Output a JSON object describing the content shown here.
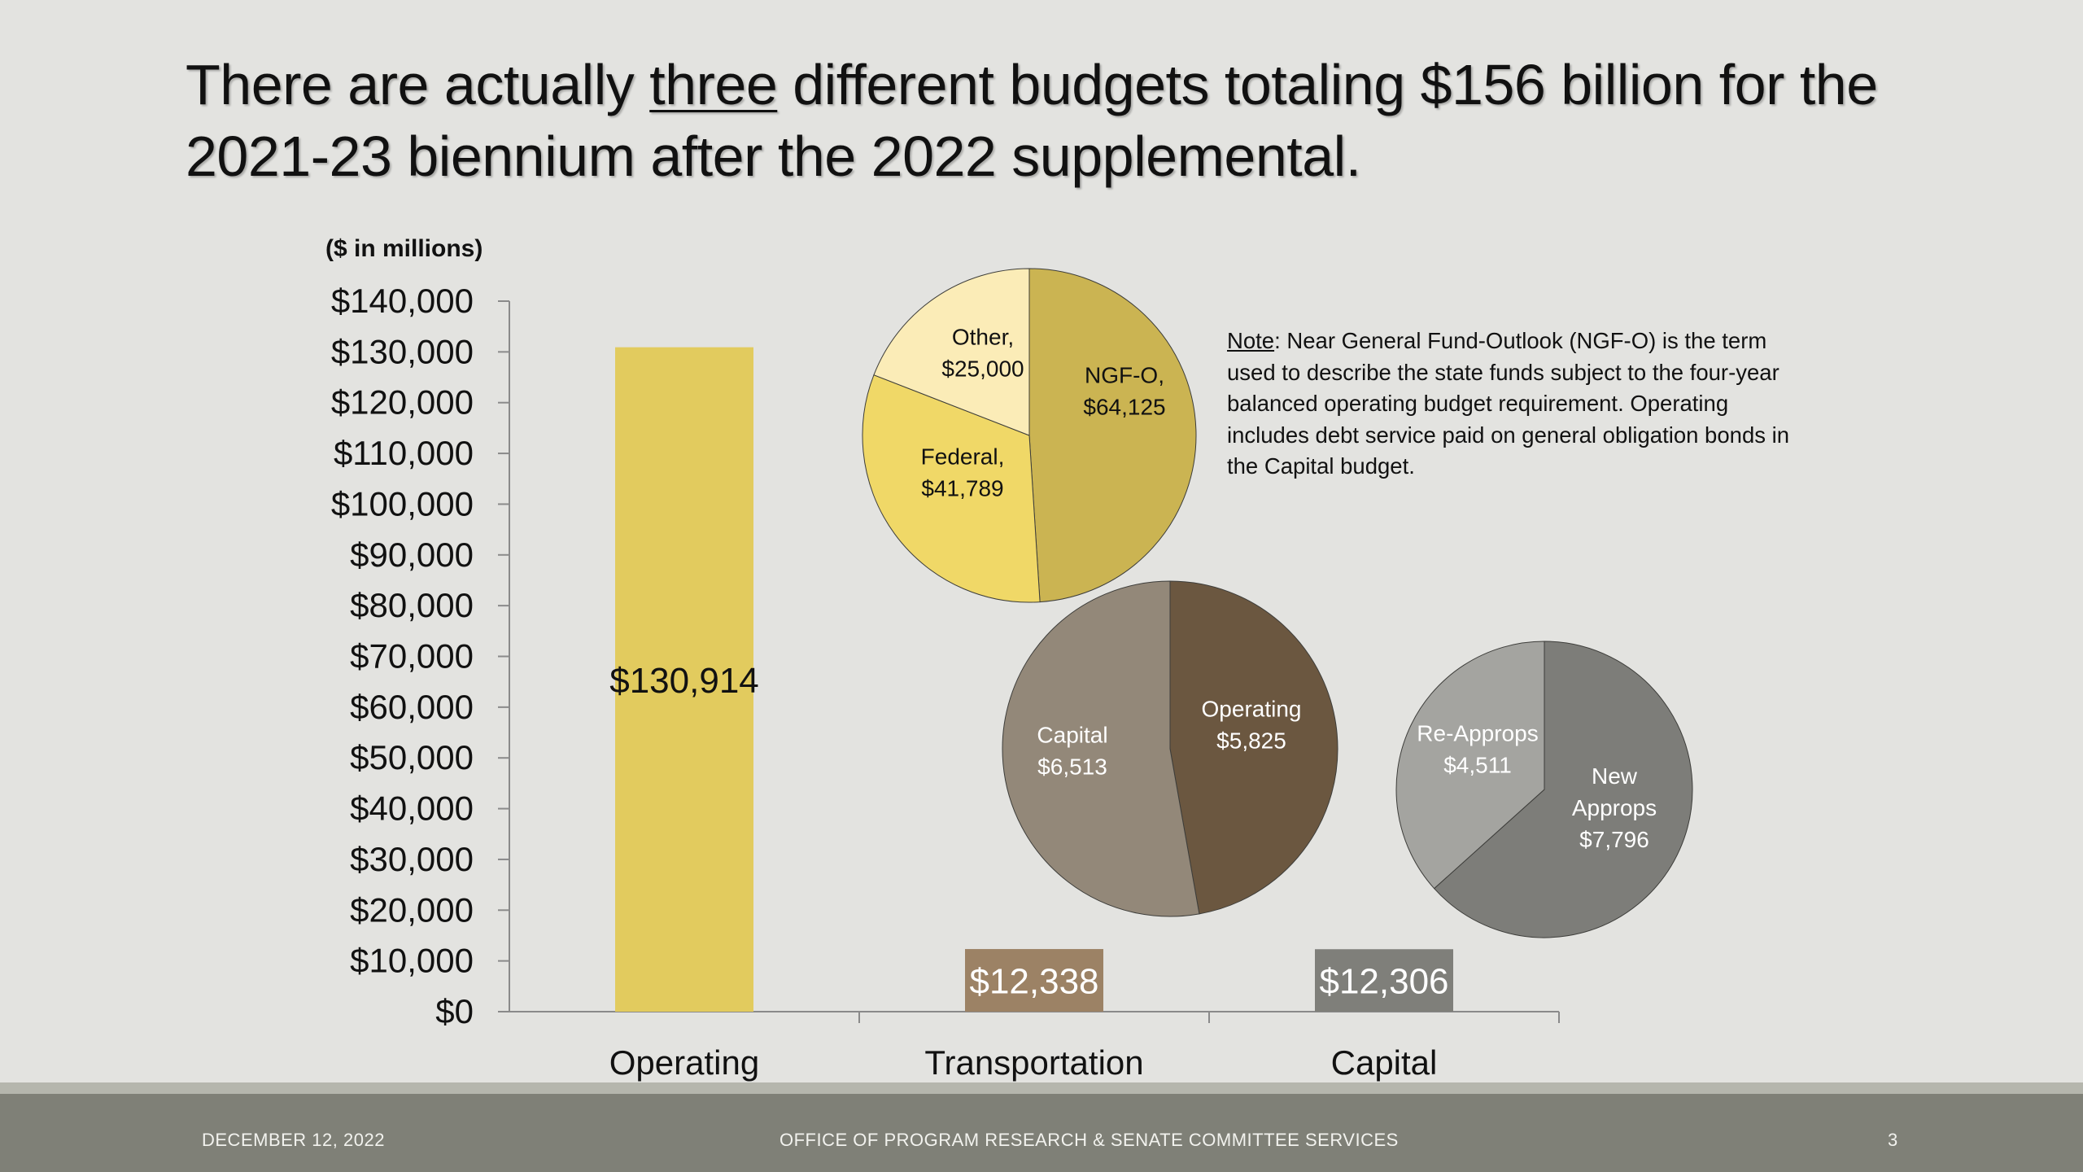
{
  "slide": {
    "title_part1": "There are actually ",
    "title_emphasis": "three",
    "title_part2": " different budgets totaling $156 billion for the 2021-23 biennium after the 2022 supplemental."
  },
  "note": {
    "label": "Note",
    "text": ":  Near General Fund-Outlook (NGF-O) is the term used to describe the state funds subject to the four-year balanced operating budget requirement. Operating includes debt service paid on general obligation bonds in the Capital budget."
  },
  "footer": {
    "date": "DECEMBER 12, 2022",
    "organization": "OFFICE OF PROGRAM RESEARCH & SENATE COMMITTEE SERVICES",
    "page_number": "3"
  },
  "chart_data": [
    {
      "type": "bar",
      "unit_label": "($ in millions)",
      "categories": [
        "Operating",
        "Transportation",
        "Capital"
      ],
      "values": [
        130914,
        12338,
        12306
      ],
      "value_labels": [
        "$130,914",
        "$12,338",
        "$12,306"
      ],
      "colors": [
        "#e2cb5e",
        "#9c8265",
        "#7f7f7a"
      ],
      "label_colors": [
        "#111111",
        "#ffffff",
        "#ffffff"
      ],
      "ylim": [
        0,
        140000
      ],
      "yticks": [
        0,
        10000,
        20000,
        30000,
        40000,
        50000,
        60000,
        70000,
        80000,
        90000,
        100000,
        110000,
        120000,
        130000,
        140000
      ],
      "ytick_labels": [
        "$0",
        "$10,000",
        "$20,000",
        "$30,000",
        "$40,000",
        "$50,000",
        "$60,000",
        "$70,000",
        "$80,000",
        "$90,000",
        "$100,000",
        "$110,000",
        "$120,000",
        "$130,000",
        "$140,000"
      ],
      "grid": false
    },
    {
      "type": "pie",
      "title": "Operating",
      "slices": [
        {
          "name": "NGF-O",
          "label": "NGF-O,",
          "value_label": "$64,125",
          "value": 64125,
          "color": "#cbb452",
          "text_color": "#111111"
        },
        {
          "name": "Federal",
          "label": "Federal,",
          "value_label": "$41,789",
          "value": 41789,
          "color": "#f0d867",
          "text_color": "#111111"
        },
        {
          "name": "Other",
          "label": "Other,",
          "value_label": "$25,000",
          "value": 25000,
          "color": "#fbecb7",
          "text_color": "#111111"
        }
      ]
    },
    {
      "type": "pie",
      "title": "Transportation",
      "slices": [
        {
          "name": "Operating",
          "label": "Operating",
          "value_label": "$5,825",
          "value": 5825,
          "color": "#6b5740",
          "text_color": "#ffffff"
        },
        {
          "name": "Capital",
          "label": "Capital",
          "value_label": "$6,513",
          "value": 6513,
          "color": "#938879",
          "text_color": "#ffffff"
        }
      ]
    },
    {
      "type": "pie",
      "title": "Capital",
      "slices": [
        {
          "name": "New Approps",
          "label": "New Approps",
          "value_label": "$7,796",
          "value": 7796,
          "color": "#7d7d79",
          "text_color": "#ffffff"
        },
        {
          "name": "Re-Approps",
          "label": "Re-Approps",
          "value_label": "$4,511",
          "value": 4511,
          "color": "#a4a4a0",
          "text_color": "#ffffff"
        }
      ]
    }
  ]
}
